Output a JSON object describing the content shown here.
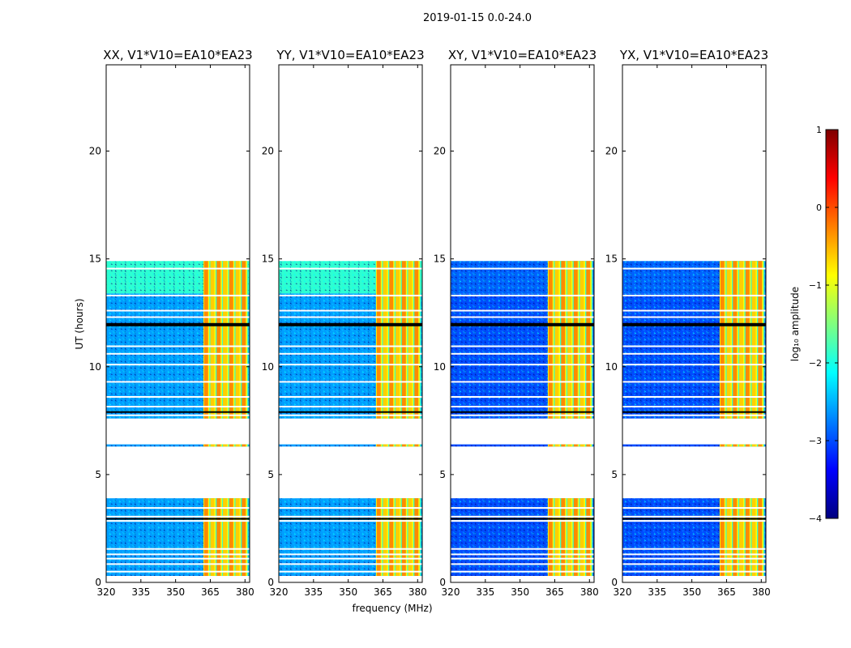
{
  "suptitle": "2019-01-15 0.0-24.0",
  "chart_data": [
    {
      "type": "heatmap",
      "title": "XX, V1*V10=EA10*EA23",
      "polarization": "XX",
      "xlabel": "frequency (MHz)",
      "ylabel": "UT (hours)",
      "xlim": [
        320,
        382
      ],
      "ylim": [
        0,
        24
      ],
      "xticks": [
        320,
        335,
        350,
        365,
        380
      ],
      "yticks": [
        0,
        5,
        10,
        15,
        20
      ],
      "data_ut_ranges": [
        [
          0.3,
          3.9
        ],
        [
          6.3,
          6.4
        ],
        [
          7.6,
          14.9
        ]
      ],
      "rfi_band_mhz": [
        362,
        381
      ],
      "gap_lines_ut": [
        0.5,
        0.85,
        1.1,
        1.3,
        1.55,
        2.85,
        3.05,
        3.45,
        7.75,
        8.15,
        8.6,
        9.3,
        10.1,
        10.6,
        10.95,
        11.95,
        12.3,
        12.6,
        13.3,
        14.55
      ],
      "dark_lines_ut": [
        11.95,
        7.9,
        2.95
      ]
    },
    {
      "type": "heatmap",
      "title": "YY, V1*V10=EA10*EA23",
      "polarization": "YY",
      "xlabel": "frequency (MHz)",
      "ylabel": "UT (hours)",
      "xlim": [
        320,
        382
      ],
      "ylim": [
        0,
        24
      ],
      "xticks": [
        320,
        335,
        350,
        365,
        380
      ],
      "yticks": [
        0,
        5,
        10,
        15,
        20
      ],
      "data_ut_ranges": [
        [
          0.3,
          3.9
        ],
        [
          6.3,
          6.4
        ],
        [
          7.6,
          14.9
        ]
      ],
      "rfi_band_mhz": [
        362,
        381
      ],
      "gap_lines_ut": [
        0.5,
        0.85,
        1.1,
        1.3,
        1.55,
        2.85,
        3.05,
        3.45,
        7.75,
        8.15,
        8.6,
        9.3,
        10.1,
        10.6,
        10.95,
        11.95,
        12.3,
        12.6,
        13.3,
        14.55
      ],
      "dark_lines_ut": [
        11.95,
        7.9,
        2.95
      ]
    },
    {
      "type": "heatmap",
      "title": "XY, V1*V10=EA10*EA23",
      "polarization": "XY",
      "xlabel": "frequency (MHz)",
      "ylabel": "UT (hours)",
      "xlim": [
        320,
        382
      ],
      "ylim": [
        0,
        24
      ],
      "xticks": [
        320,
        335,
        350,
        365,
        380
      ],
      "yticks": [
        0,
        5,
        10,
        15,
        20
      ],
      "data_ut_ranges": [
        [
          0.3,
          3.9
        ],
        [
          6.3,
          6.4
        ],
        [
          7.6,
          14.9
        ]
      ],
      "rfi_band_mhz": [
        362,
        381
      ],
      "gap_lines_ut": [
        0.5,
        0.85,
        1.1,
        1.3,
        1.55,
        2.85,
        3.05,
        3.45,
        7.75,
        8.15,
        8.6,
        9.3,
        10.1,
        10.6,
        10.95,
        11.95,
        12.3,
        12.6,
        13.3,
        14.55
      ],
      "dark_lines_ut": [
        11.95,
        7.9,
        2.95
      ]
    },
    {
      "type": "heatmap",
      "title": "YX, V1*V10=EA10*EA23",
      "polarization": "YX",
      "xlabel": "frequency (MHz)",
      "ylabel": "UT (hours)",
      "xlim": [
        320,
        382
      ],
      "ylim": [
        0,
        24
      ],
      "xticks": [
        320,
        335,
        350,
        365,
        380
      ],
      "yticks": [
        0,
        5,
        10,
        15,
        20
      ],
      "data_ut_ranges": [
        [
          0.3,
          3.9
        ],
        [
          6.3,
          6.4
        ],
        [
          7.6,
          14.9
        ]
      ],
      "rfi_band_mhz": [
        362,
        381
      ],
      "gap_lines_ut": [
        0.5,
        0.85,
        1.1,
        1.3,
        1.55,
        2.85,
        3.05,
        3.45,
        7.75,
        8.15,
        8.6,
        9.3,
        10.1,
        10.6,
        10.95,
        11.95,
        12.3,
        12.6,
        13.3,
        14.55
      ],
      "dark_lines_ut": [
        11.95,
        7.9,
        2.95
      ]
    }
  ],
  "colorbar": {
    "label": "log₁₀ amplitude",
    "vmin": -4,
    "vmax": 1,
    "ticks": [
      1,
      0,
      -1,
      -2,
      -3,
      -4
    ],
    "tick_labels": [
      "1",
      "0",
      "−1",
      "−2",
      "−3",
      "−4"
    ],
    "colormap": "jet",
    "colors": [
      "#00007f",
      "#0000ff",
      "#007fff",
      "#00ffff",
      "#7fff7f",
      "#ffff00",
      "#ff7f00",
      "#ff0000",
      "#7f0000"
    ]
  }
}
